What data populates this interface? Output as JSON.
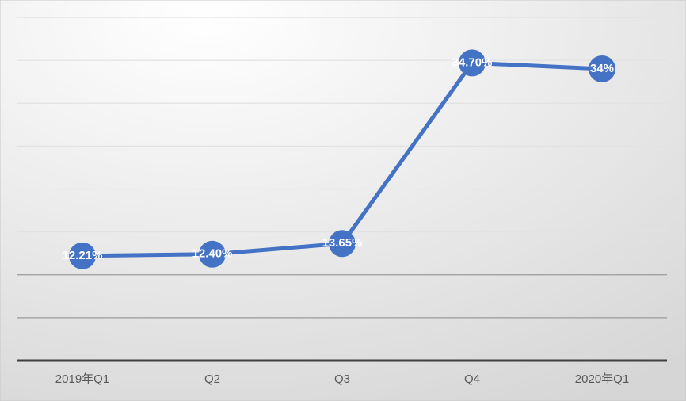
{
  "chart_data": {
    "type": "line",
    "categories": [
      "2019年Q1",
      "Q2",
      "Q3",
      "Q4",
      "2020年Q1"
    ],
    "values": [
      12.21,
      12.4,
      13.65,
      34.7,
      34
    ],
    "value_labels": [
      "12.21%",
      "12.40%",
      "13.65%",
      "34.70%",
      "34%"
    ],
    "color": "#4472c4",
    "ylim": [
      0,
      40
    ],
    "yticks": [
      0,
      5,
      10,
      15,
      20,
      25,
      30,
      35,
      40
    ],
    "grid": true
  }
}
